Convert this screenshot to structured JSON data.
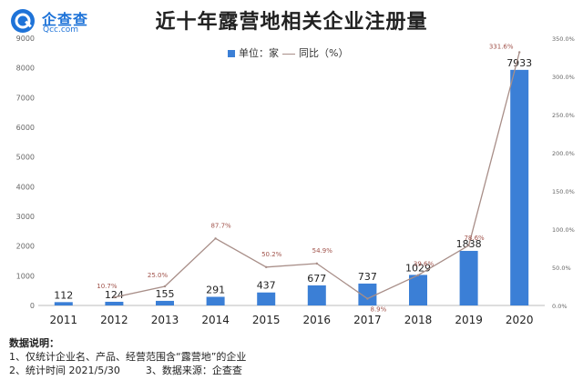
{
  "logo": {
    "name": "企查查",
    "url": "Qcc.com",
    "color": "#1e73d8"
  },
  "chart_data": {
    "type": "bar",
    "title": "近十年露营地相关企业注册量",
    "categories": [
      "2011",
      "2012",
      "2013",
      "2014",
      "2015",
      "2016",
      "2017",
      "2018",
      "2019",
      "2020"
    ],
    "series": [
      {
        "name": "单位：家",
        "values": [
          112,
          124,
          155,
          291,
          437,
          677,
          737,
          1029,
          1838,
          7933
        ],
        "color": "#3b7fd6"
      },
      {
        "name": "同比（%）",
        "type": "line",
        "axis": "right",
        "values": [
          null,
          10.7,
          25.0,
          87.7,
          50.2,
          54.9,
          8.9,
          39.6,
          78.6,
          331.6
        ],
        "labels": [
          "",
          "10.7%",
          "25.0%",
          "87.7%",
          "50.2%",
          "54.9%",
          "8.9%",
          "39.6%",
          "78.6%",
          "331.6%"
        ],
        "color": "#a88e88"
      }
    ],
    "legend_separator": "—",
    "yleft": {
      "ticks": [
        0,
        1000,
        2000,
        3000,
        4000,
        5000,
        6000,
        7000,
        8000,
        9000
      ],
      "ylim": [
        0,
        9000
      ]
    },
    "yright": {
      "ticks": [
        0,
        50,
        100,
        150,
        200,
        250,
        300,
        350
      ],
      "tick_labels": [
        "0.0%",
        "50.0%",
        "100.0%",
        "150.0%",
        "200.0%",
        "250.0%",
        "300.0%",
        "350.0%"
      ],
      "ylim": [
        0,
        350
      ]
    },
    "grid": false,
    "legend_position": "top-center"
  },
  "notes": {
    "heading": "数据说明：",
    "line1": "1、仅统计企业名、产品、经营范围含“露营地”的企业",
    "line2": "2、统计时间 2021/5/30        3、数据来源：企查查"
  }
}
